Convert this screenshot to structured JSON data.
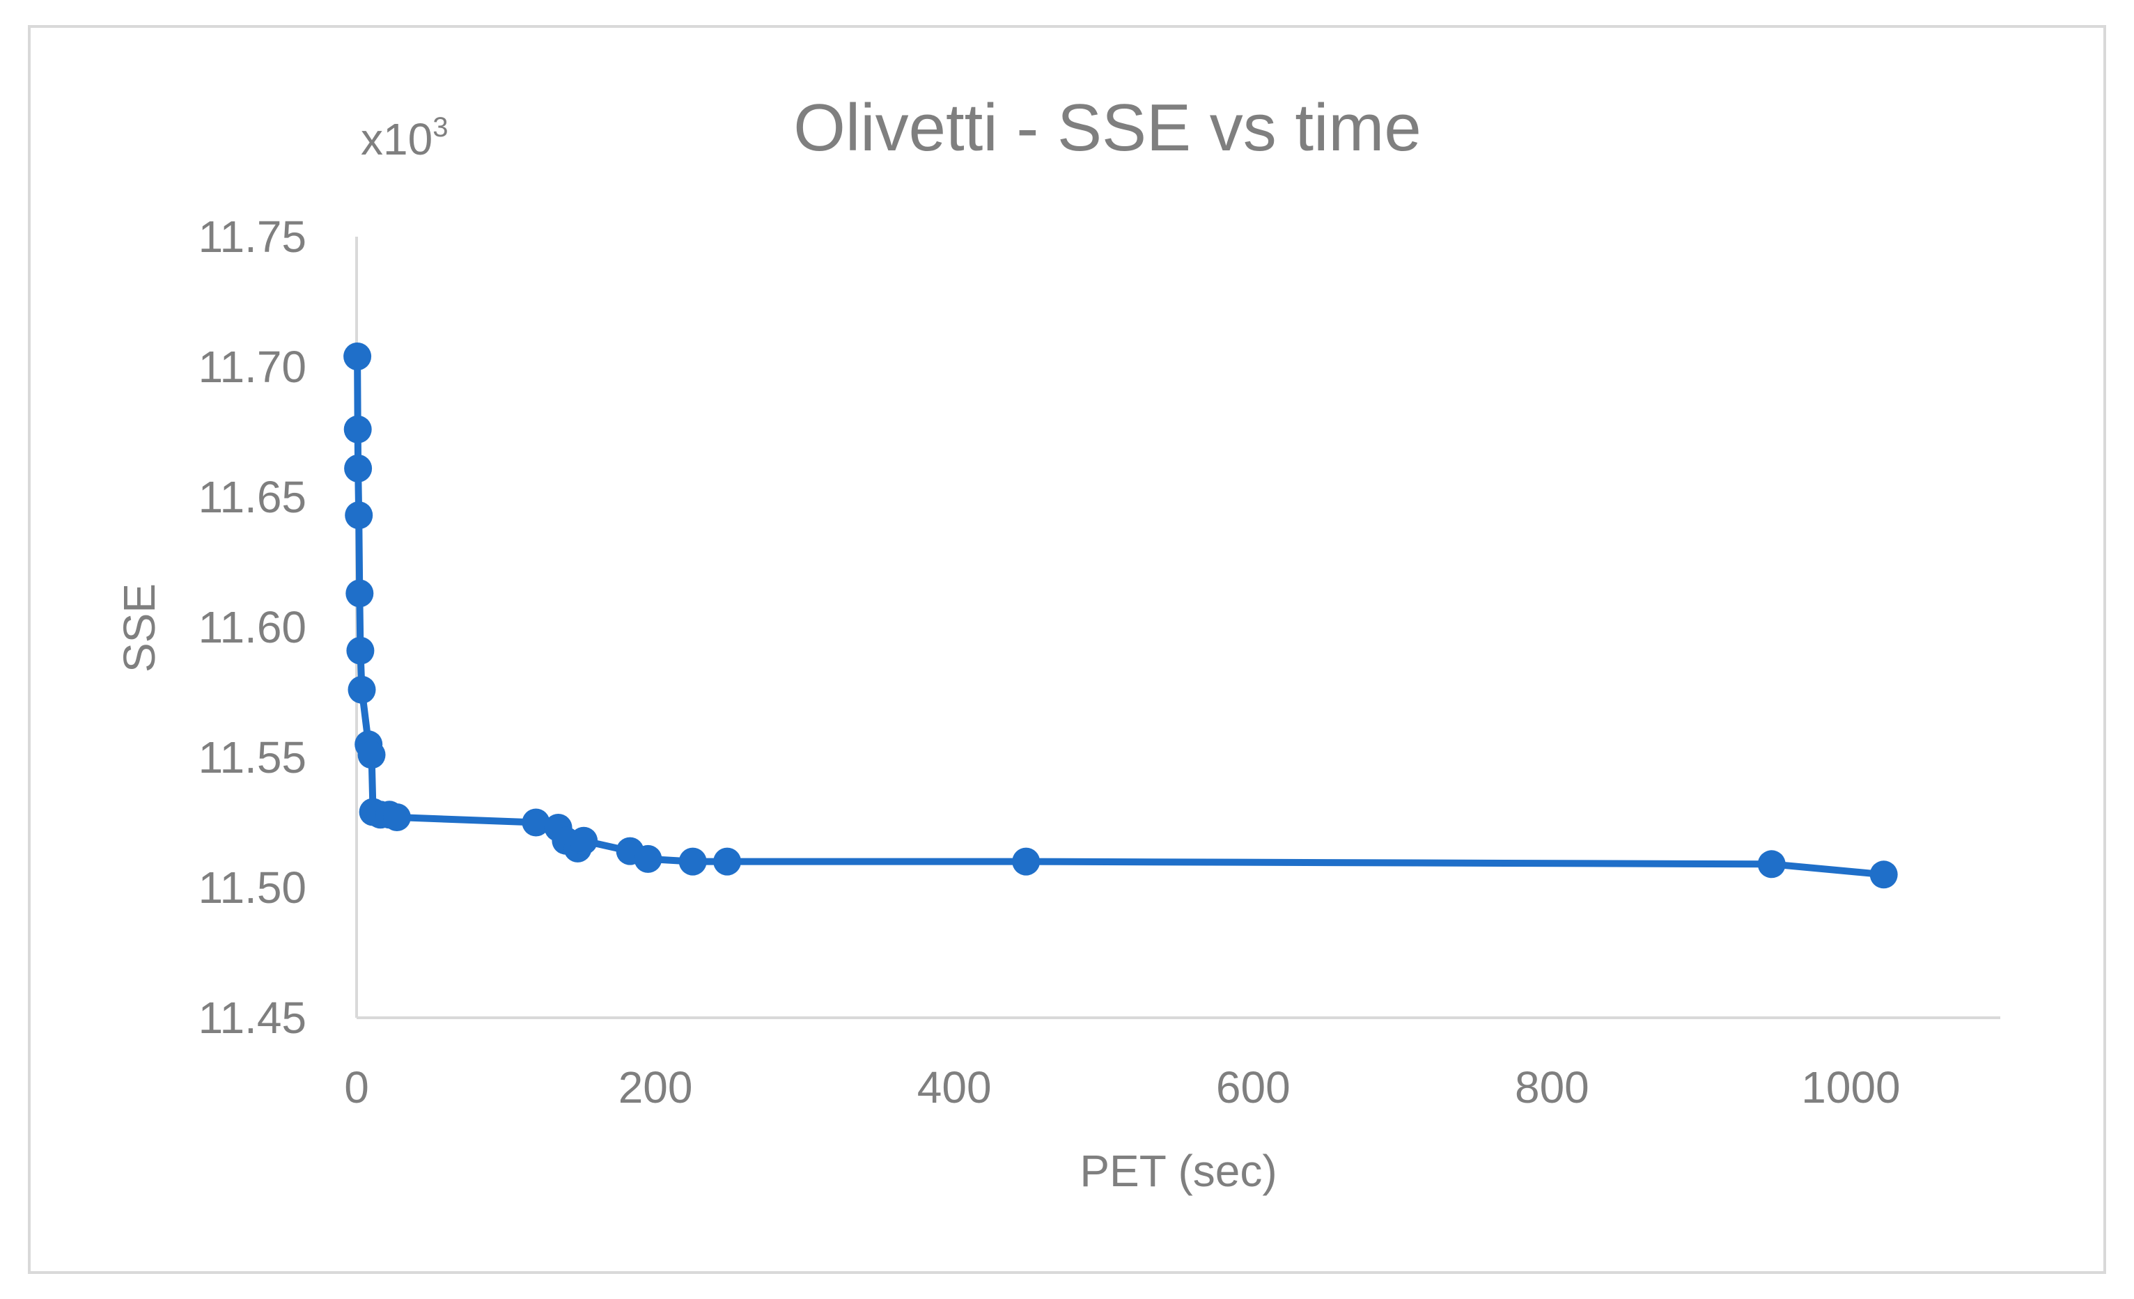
{
  "chart_data": {
    "type": "line",
    "title": "Olivetti - SSE vs time",
    "xlabel": "PET (sec)",
    "ylabel": "SSE",
    "y_multiplier": "x10",
    "y_multiplier_exp": "3",
    "xlim": [
      0,
      1100
    ],
    "ylim": [
      11.45,
      11.75
    ],
    "x_ticks": [
      0,
      200,
      400,
      600,
      800,
      1000
    ],
    "y_ticks": [
      11.45,
      11.5,
      11.55,
      11.6,
      11.65,
      11.7,
      11.75
    ],
    "x_tick_labels": [
      "0",
      "200",
      "400",
      "600",
      "800",
      "1000"
    ],
    "y_tick_labels": [
      "11.45",
      "11.50",
      "11.55",
      "11.60",
      "11.65",
      "11.70",
      "11.75"
    ],
    "grid": false,
    "legend": "none",
    "series": [
      {
        "color": "#1f6fc9",
        "x": [
          0.5,
          0.8,
          1.0,
          1.5,
          2.0,
          2.5,
          3.5,
          8,
          10,
          11,
          16,
          22,
          27,
          120,
          135,
          140,
          148,
          152,
          183,
          195,
          225,
          248,
          448,
          947,
          1022
        ],
        "y": [
          11.704,
          11.676,
          11.661,
          11.643,
          11.613,
          11.591,
          11.576,
          11.555,
          11.551,
          11.529,
          11.528,
          11.528,
          11.527,
          11.525,
          11.523,
          11.518,
          11.515,
          11.518,
          11.514,
          11.511,
          11.51,
          11.51,
          11.51,
          11.509,
          11.505
        ]
      }
    ]
  }
}
